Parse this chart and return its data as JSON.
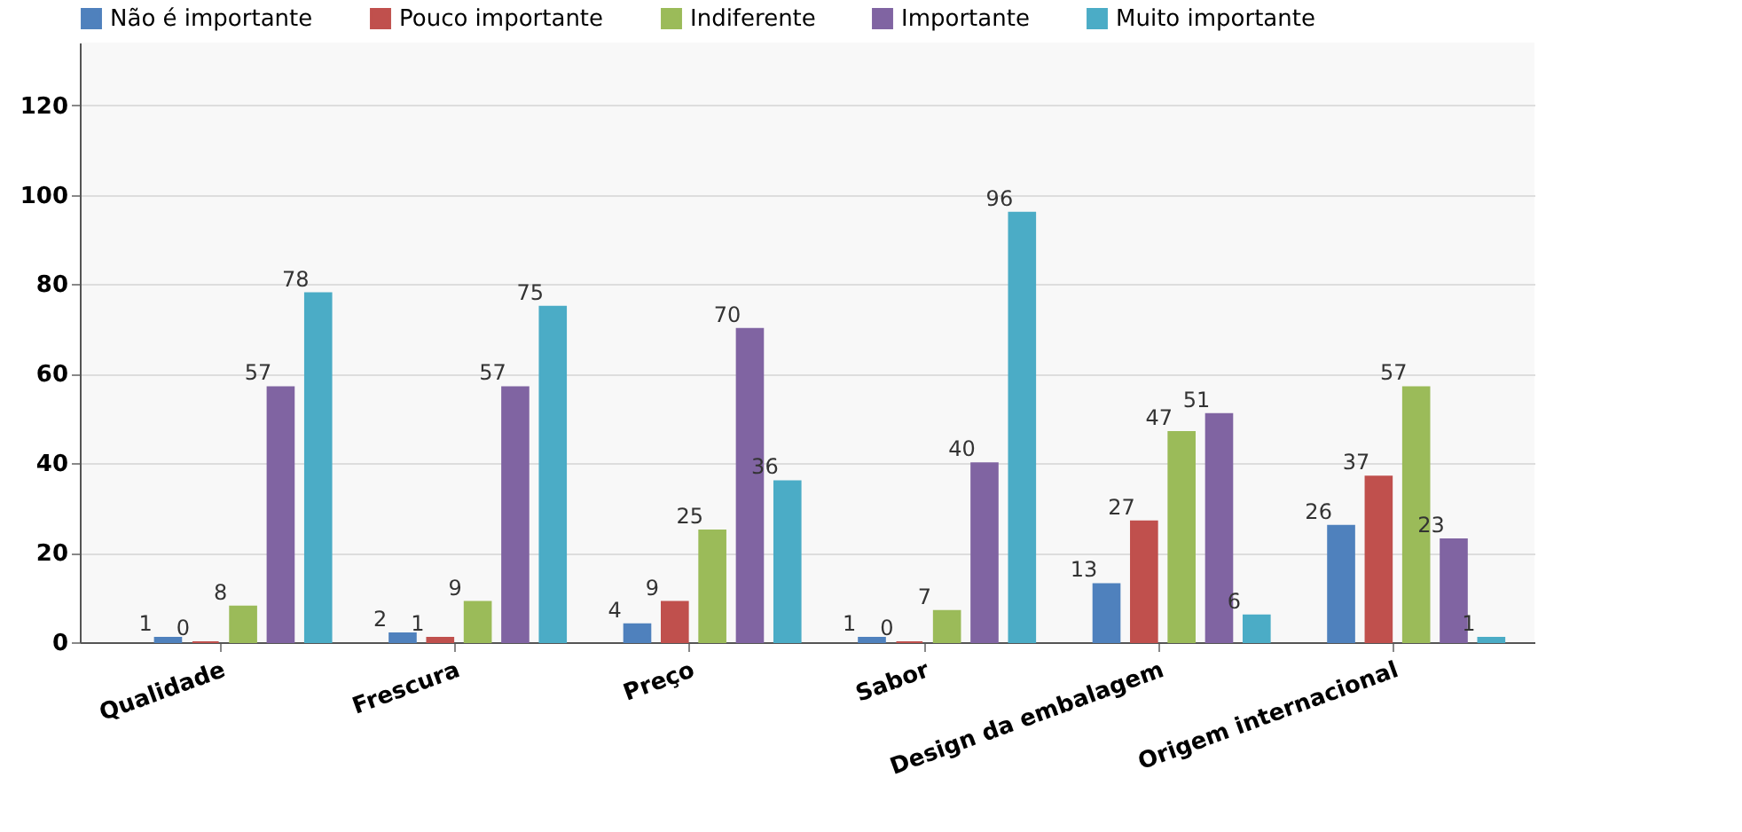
{
  "chart_data": {
    "type": "bar",
    "categories": [
      "Qualidade",
      "Frescura",
      "Preço",
      "Sabor",
      "Design da embalagem",
      "Origem internacional"
    ],
    "series": [
      {
        "name": "Não é importante",
        "color": "#4f81bd",
        "values": [
          1,
          2,
          4,
          1,
          13,
          26
        ]
      },
      {
        "name": "Pouco importante",
        "color": "#c0504d",
        "values": [
          0,
          1,
          9,
          0,
          27,
          37
        ]
      },
      {
        "name": "Indiferente",
        "color": "#9bbb59",
        "values": [
          8,
          9,
          25,
          7,
          47,
          57
        ]
      },
      {
        "name": "Importante",
        "color": "#8064a2",
        "values": [
          57,
          57,
          70,
          40,
          51,
          23
        ]
      },
      {
        "name": "Muito importante",
        "color": "#4bacc6",
        "values": [
          78,
          75,
          36,
          96,
          6,
          1
        ]
      }
    ],
    "ylim": [
      0,
      134
    ],
    "yticks": [
      0,
      20,
      40,
      60,
      80,
      100,
      120
    ],
    "grid": "y",
    "legend": "top left",
    "data_labels": true
  }
}
